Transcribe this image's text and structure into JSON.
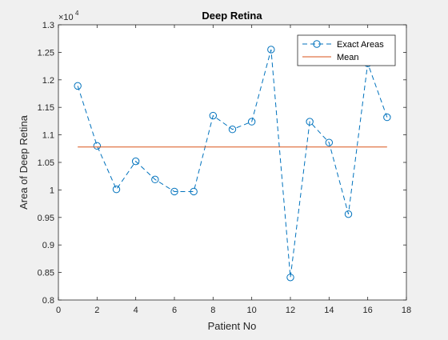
{
  "chart_data": {
    "type": "line",
    "title": "Deep Retina",
    "xlabel": "Patient No",
    "ylabel": "Area of Deep Retina",
    "xlim": [
      0,
      18
    ],
    "ylim": [
      8000,
      13000
    ],
    "xticks": [
      0,
      2,
      4,
      6,
      8,
      10,
      12,
      14,
      16,
      18
    ],
    "xtick_labels": [
      "0",
      "2",
      "4",
      "6",
      "8",
      "10",
      "12",
      "14",
      "16",
      "18"
    ],
    "yticks": [
      8000,
      8500,
      9000,
      9500,
      10000,
      10500,
      11000,
      11500,
      12000,
      12500,
      13000
    ],
    "ytick_labels": [
      "0.8",
      "0.85",
      "0.9",
      "0.95",
      "1",
      "1.05",
      "1.1",
      "1.15",
      "1.2",
      "1.25",
      "1.3"
    ],
    "y_exponent_label": "×10",
    "y_exponent_power": "4",
    "grid": false,
    "legend_position": "top-right",
    "series": [
      {
        "name": "Exact Areas",
        "style": "dashed-circle",
        "color": "#0072BD",
        "x": [
          1,
          2,
          3,
          4,
          5,
          6,
          7,
          8,
          9,
          10,
          11,
          12,
          13,
          14,
          15,
          16,
          17
        ],
        "y": [
          11890,
          10800,
          10010,
          10520,
          10190,
          9970,
          9970,
          11350,
          11100,
          11240,
          12550,
          8410,
          11240,
          10860,
          9560,
          12300,
          11320
        ]
      },
      {
        "name": "Mean",
        "style": "solid",
        "color": "#D95319",
        "x": [
          1,
          17
        ],
        "y": [
          10780,
          10780
        ]
      }
    ]
  }
}
